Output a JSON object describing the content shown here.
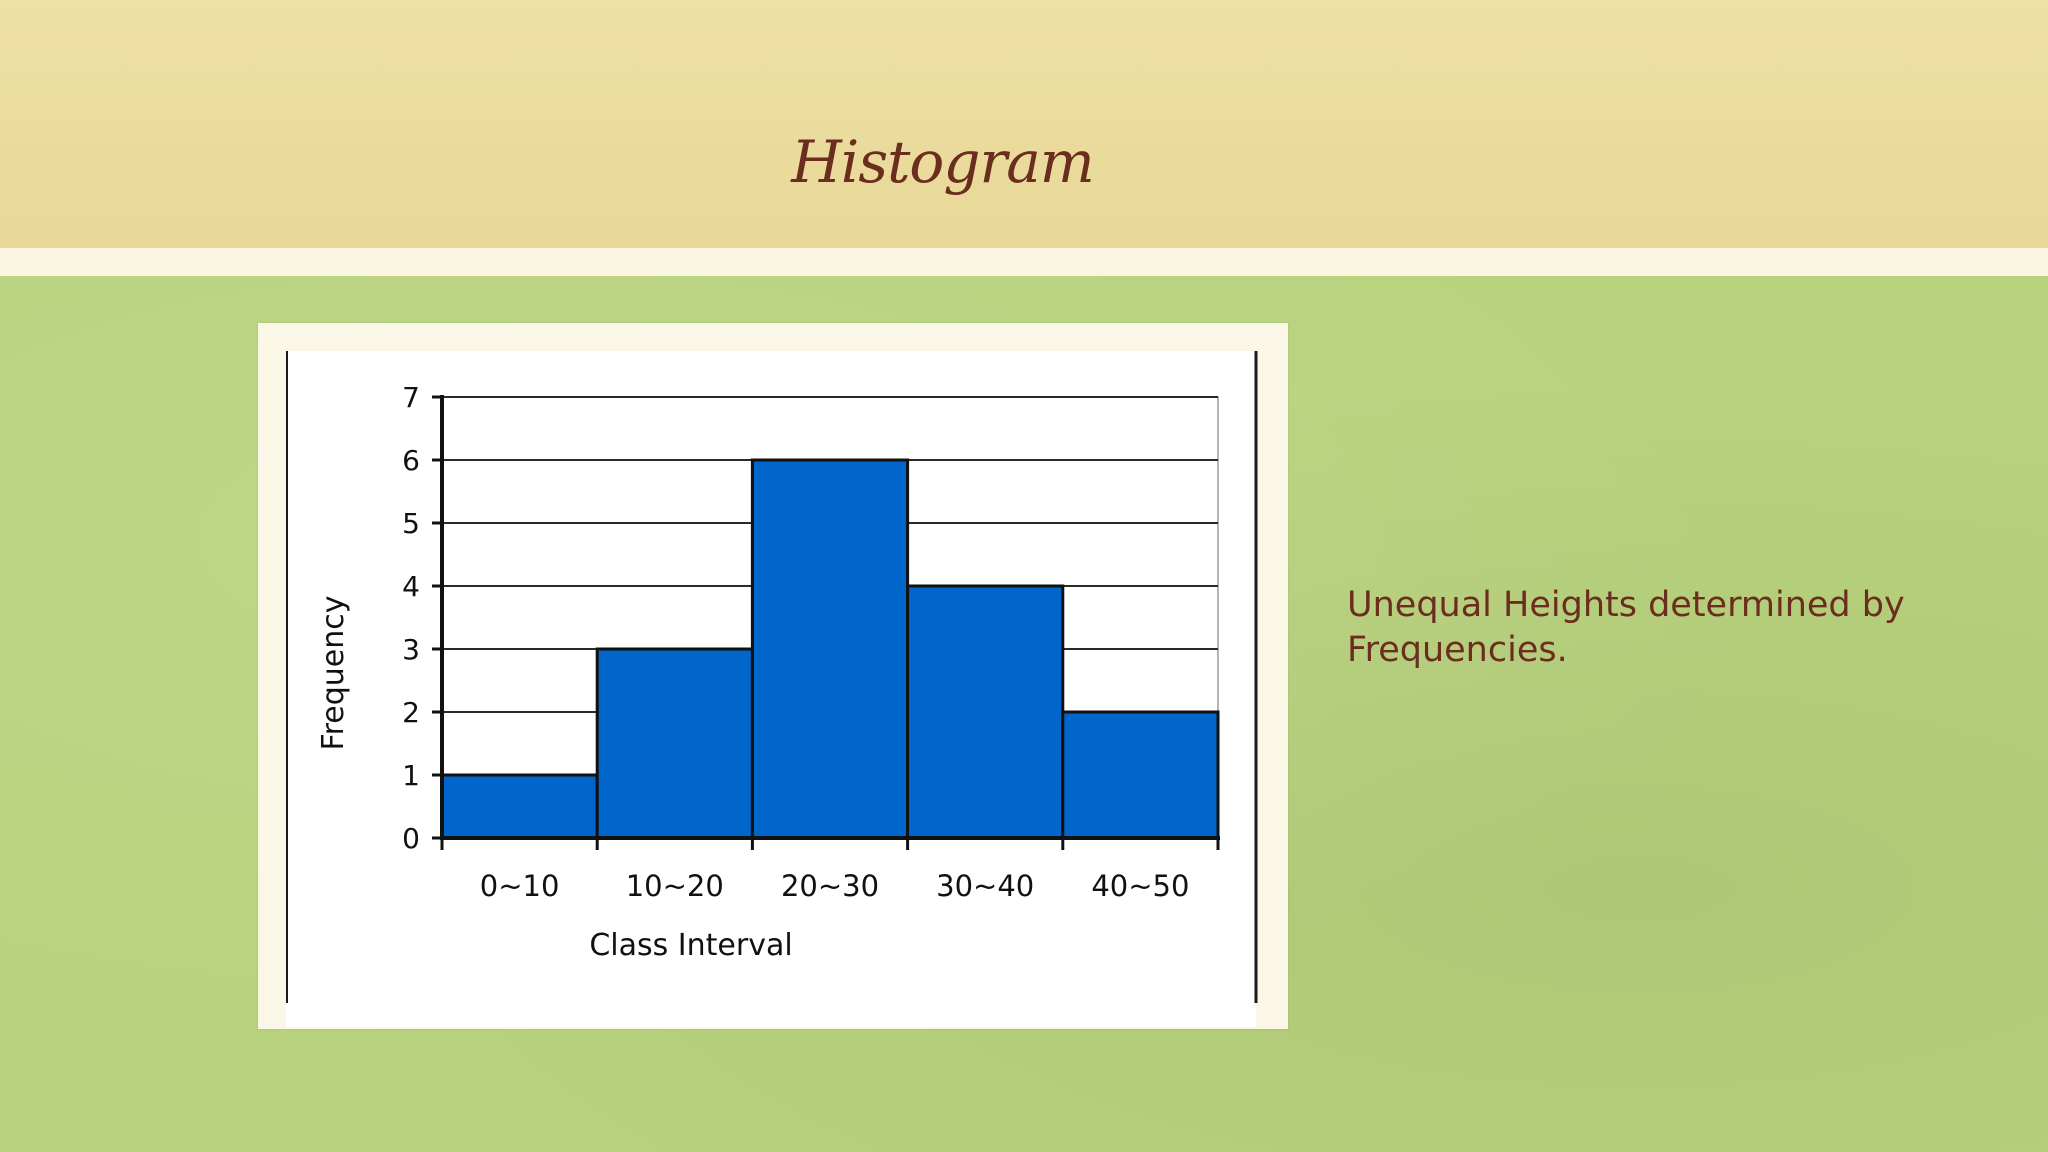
{
  "slide": {
    "title": "Histogram",
    "body_text": "Unequal Heights determined by Frequencies."
  },
  "colors": {
    "bar_fill": "#0066cc",
    "title_text": "#6b2e1e",
    "background_green": "#b8d27d",
    "header_band": "#efe0a6"
  },
  "chart_data": {
    "type": "bar",
    "categories": [
      "0~10",
      "10~20",
      "20~30",
      "30~40",
      "40~50"
    ],
    "values": [
      1,
      3,
      6,
      4,
      2
    ],
    "title": "",
    "xlabel": "Class Interval",
    "ylabel": "Frequency",
    "ylim": [
      0,
      7
    ],
    "yticks": [
      "0",
      "1",
      "2",
      "3",
      "4",
      "5",
      "6",
      "7"
    ],
    "grid": true,
    "legend": "none"
  }
}
